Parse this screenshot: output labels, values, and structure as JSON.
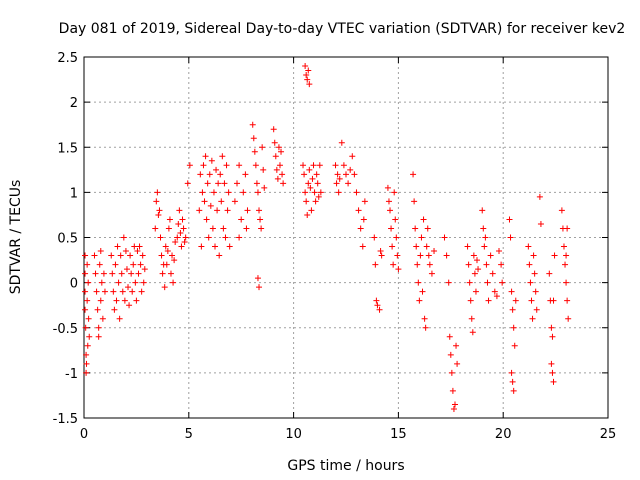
{
  "chart_data": {
    "type": "scatter",
    "title": "Day 081 of 2019, Sidereal Day-to-day VTEC variation (SDTVAR) for receiver kev2",
    "xlabel": "GPS time / hours",
    "ylabel": "SDTVAR / TECUs",
    "xlim": [
      0,
      25
    ],
    "ylim": [
      -1.5,
      2.5
    ],
    "xticks": [
      0,
      5,
      10,
      15,
      20,
      25
    ],
    "xtick_labels": [
      "0",
      "5",
      "10",
      "15",
      "20",
      "25"
    ],
    "yticks": [
      -1.5,
      -1,
      -0.5,
      0,
      0.5,
      1,
      1.5,
      2,
      2.5
    ],
    "ytick_labels": [
      "-1.5",
      "-1",
      "-0.5",
      "0",
      "0.5",
      "1",
      "1.5",
      "2",
      "2.5"
    ],
    "grid": true,
    "marker": "+",
    "color": "#ff0000",
    "series": [
      {
        "name": "SDTVAR",
        "points": [
          [
            0.05,
            0.3
          ],
          [
            0.05,
            0.1
          ],
          [
            0.05,
            -0.1
          ],
          [
            0.05,
            -0.3
          ],
          [
            0.08,
            -0.5
          ],
          [
            0.1,
            -0.8
          ],
          [
            0.1,
            -1.0
          ],
          [
            0.12,
            -0.9
          ],
          [
            0.15,
            0.2
          ],
          [
            0.15,
            -0.2
          ],
          [
            0.18,
            -0.7
          ],
          [
            0.2,
            0.0
          ],
          [
            0.22,
            -0.4
          ],
          [
            0.25,
            -0.6
          ],
          [
            0.5,
            0.3
          ],
          [
            0.55,
            0.1
          ],
          [
            0.6,
            -0.1
          ],
          [
            0.65,
            -0.3
          ],
          [
            0.7,
            -0.5
          ],
          [
            0.75,
            0.2
          ],
          [
            0.8,
            -0.2
          ],
          [
            0.85,
            0.0
          ],
          [
            0.9,
            -0.4
          ],
          [
            0.95,
            0.1
          ],
          [
            1.0,
            -0.1
          ],
          [
            0.8,
            0.35
          ],
          [
            0.7,
            -0.6
          ],
          [
            1.3,
            0.3
          ],
          [
            1.35,
            0.1
          ],
          [
            1.4,
            -0.1
          ],
          [
            1.45,
            -0.3
          ],
          [
            1.5,
            0.2
          ],
          [
            1.55,
            -0.2
          ],
          [
            1.6,
            0.4
          ],
          [
            1.65,
            0.0
          ],
          [
            1.7,
            -0.4
          ],
          [
            1.75,
            0.3
          ],
          [
            1.8,
            0.1
          ],
          [
            1.85,
            -0.1
          ],
          [
            1.9,
            0.5
          ],
          [
            1.95,
            -0.2
          ],
          [
            2.0,
            0.35
          ],
          [
            2.05,
            0.15
          ],
          [
            2.1,
            -0.05
          ],
          [
            2.15,
            -0.25
          ],
          [
            2.2,
            0.3
          ],
          [
            2.25,
            0.1
          ],
          [
            2.3,
            -0.1
          ],
          [
            2.35,
            0.2
          ],
          [
            2.4,
            0.4
          ],
          [
            2.45,
            0.0
          ],
          [
            2.5,
            -0.2
          ],
          [
            2.55,
            0.35
          ],
          [
            2.6,
            0.1
          ],
          [
            2.65,
            0.4
          ],
          [
            2.7,
            0.2
          ],
          [
            2.75,
            -0.1
          ],
          [
            2.8,
            0.3
          ],
          [
            2.85,
            0.0
          ],
          [
            2.9,
            0.15
          ],
          [
            3.4,
            0.6
          ],
          [
            3.45,
            0.9
          ],
          [
            3.5,
            1.0
          ],
          [
            3.55,
            0.75
          ],
          [
            3.6,
            0.8
          ],
          [
            3.65,
            0.5
          ],
          [
            3.7,
            0.3
          ],
          [
            3.75,
            0.1
          ],
          [
            3.8,
            0.2
          ],
          [
            3.85,
            -0.05
          ],
          [
            3.9,
            0.4
          ],
          [
            3.95,
            0.2
          ],
          [
            4.0,
            0.35
          ],
          [
            4.05,
            0.6
          ],
          [
            4.1,
            0.7
          ],
          [
            4.15,
            0.1
          ],
          [
            4.2,
            0.3
          ],
          [
            4.25,
            0.0
          ],
          [
            4.3,
            0.25
          ],
          [
            4.35,
            0.45
          ],
          [
            4.45,
            0.5
          ],
          [
            4.5,
            0.65
          ],
          [
            4.55,
            0.8
          ],
          [
            4.6,
            0.55
          ],
          [
            4.65,
            0.4
          ],
          [
            4.7,
            0.7
          ],
          [
            4.75,
            0.6
          ],
          [
            4.8,
            0.45
          ],
          [
            4.85,
            0.5
          ],
          [
            4.95,
            1.1
          ],
          [
            5.05,
            1.3
          ],
          [
            5.5,
            0.8
          ],
          [
            5.55,
            1.2
          ],
          [
            5.6,
            0.4
          ],
          [
            5.65,
            1.0
          ],
          [
            5.7,
            1.3
          ],
          [
            5.75,
            0.9
          ],
          [
            5.8,
            1.4
          ],
          [
            5.85,
            0.7
          ],
          [
            5.9,
            1.1
          ],
          [
            5.95,
            0.5
          ],
          [
            6.0,
            1.2
          ],
          [
            6.05,
            0.85
          ],
          [
            6.1,
            1.35
          ],
          [
            6.15,
            0.6
          ],
          [
            6.2,
            1.0
          ],
          [
            6.25,
            0.4
          ],
          [
            6.3,
            1.25
          ],
          [
            6.35,
            0.8
          ],
          [
            6.4,
            1.1
          ],
          [
            6.45,
            0.3
          ],
          [
            6.5,
            1.2
          ],
          [
            6.55,
            0.9
          ],
          [
            6.6,
            1.4
          ],
          [
            6.65,
            0.6
          ],
          [
            6.7,
            1.1
          ],
          [
            6.75,
            0.5
          ],
          [
            6.8,
            1.3
          ],
          [
            6.85,
            0.8
          ],
          [
            6.9,
            1.0
          ],
          [
            6.95,
            0.4
          ],
          [
            7.2,
            0.9
          ],
          [
            7.3,
            1.1
          ],
          [
            7.4,
            1.3
          ],
          [
            7.5,
            0.7
          ],
          [
            7.6,
            1.0
          ],
          [
            7.7,
            1.2
          ],
          [
            7.75,
            0.6
          ],
          [
            7.8,
            0.8
          ],
          [
            7.4,
            0.5
          ],
          [
            8.05,
            1.75
          ],
          [
            8.1,
            1.6
          ],
          [
            8.15,
            1.45
          ],
          [
            8.2,
            1.3
          ],
          [
            8.25,
            1.1
          ],
          [
            8.3,
            1.0
          ],
          [
            8.35,
            0.8
          ],
          [
            8.4,
            0.7
          ],
          [
            8.45,
            0.6
          ],
          [
            8.5,
            1.5
          ],
          [
            8.55,
            1.25
          ],
          [
            8.6,
            1.05
          ],
          [
            8.3,
            0.05
          ],
          [
            8.35,
            -0.05
          ],
          [
            9.05,
            1.7
          ],
          [
            9.1,
            1.55
          ],
          [
            9.15,
            1.4
          ],
          [
            9.2,
            1.25
          ],
          [
            9.25,
            1.15
          ],
          [
            9.3,
            1.5
          ],
          [
            9.35,
            1.3
          ],
          [
            9.4,
            1.45
          ],
          [
            9.45,
            1.2
          ],
          [
            9.5,
            1.1
          ],
          [
            10.55,
            2.4
          ],
          [
            10.6,
            2.3
          ],
          [
            10.65,
            2.25
          ],
          [
            10.7,
            2.35
          ],
          [
            10.75,
            2.2
          ],
          [
            10.45,
            1.3
          ],
          [
            10.5,
            1.2
          ],
          [
            10.55,
            1.0
          ],
          [
            10.6,
            0.9
          ],
          [
            10.65,
            0.75
          ],
          [
            10.7,
            1.1
          ],
          [
            10.75,
            1.25
          ],
          [
            10.8,
            1.05
          ],
          [
            10.85,
            0.8
          ],
          [
            10.9,
            1.15
          ],
          [
            10.95,
            1.3
          ],
          [
            11.0,
            1.0
          ],
          [
            11.05,
            0.9
          ],
          [
            11.1,
            1.2
          ],
          [
            11.15,
            1.1
          ],
          [
            11.2,
            0.95
          ],
          [
            11.25,
            1.3
          ],
          [
            11.3,
            1.0
          ],
          [
            12.0,
            1.3
          ],
          [
            12.05,
            1.1
          ],
          [
            12.1,
            1.2
          ],
          [
            12.15,
            1.0
          ],
          [
            12.2,
            1.15
          ],
          [
            12.3,
            1.55
          ],
          [
            12.4,
            1.3
          ],
          [
            12.5,
            1.2
          ],
          [
            12.6,
            1.1
          ],
          [
            12.7,
            1.25
          ],
          [
            12.8,
            1.4
          ],
          [
            12.9,
            1.2
          ],
          [
            13.0,
            1.0
          ],
          [
            13.1,
            0.8
          ],
          [
            13.2,
            0.6
          ],
          [
            13.3,
            0.4
          ],
          [
            13.35,
            0.7
          ],
          [
            13.4,
            0.9
          ],
          [
            13.85,
            0.5
          ],
          [
            13.9,
            0.2
          ],
          [
            13.95,
            -0.2
          ],
          [
            14.0,
            -0.25
          ],
          [
            14.1,
            -0.3
          ],
          [
            14.15,
            0.35
          ],
          [
            14.2,
            0.3
          ],
          [
            14.5,
            1.05
          ],
          [
            14.55,
            0.9
          ],
          [
            14.6,
            0.8
          ],
          [
            14.65,
            0.6
          ],
          [
            14.7,
            0.4
          ],
          [
            14.75,
            0.2
          ],
          [
            14.8,
            1.0
          ],
          [
            14.85,
            0.7
          ],
          [
            14.9,
            0.5
          ],
          [
            14.95,
            0.3
          ],
          [
            15.0,
            0.15
          ],
          [
            15.7,
            1.2
          ],
          [
            15.75,
            0.9
          ],
          [
            15.8,
            0.6
          ],
          [
            15.85,
            0.4
          ],
          [
            15.9,
            0.2
          ],
          [
            15.95,
            0.0
          ],
          [
            16.0,
            -0.2
          ],
          [
            16.05,
            0.3
          ],
          [
            16.1,
            0.5
          ],
          [
            16.15,
            -0.1
          ],
          [
            16.2,
            0.7
          ],
          [
            16.25,
            -0.4
          ],
          [
            16.3,
            -0.5
          ],
          [
            16.35,
            0.4
          ],
          [
            16.4,
            0.6
          ],
          [
            16.45,
            0.3
          ],
          [
            16.5,
            0.2
          ],
          [
            16.6,
            0.1
          ],
          [
            16.7,
            0.35
          ],
          [
            17.2,
            0.5
          ],
          [
            17.3,
            0.3
          ],
          [
            17.4,
            0.0
          ],
          [
            17.45,
            -0.6
          ],
          [
            17.5,
            -0.8
          ],
          [
            17.55,
            -1.0
          ],
          [
            17.6,
            -1.2
          ],
          [
            17.65,
            -1.4
          ],
          [
            17.7,
            -1.35
          ],
          [
            17.75,
            -0.7
          ],
          [
            17.8,
            -0.9
          ],
          [
            18.3,
            0.4
          ],
          [
            18.35,
            0.2
          ],
          [
            18.4,
            0.0
          ],
          [
            18.45,
            -0.2
          ],
          [
            18.5,
            -0.4
          ],
          [
            18.55,
            -0.55
          ],
          [
            18.6,
            0.3
          ],
          [
            18.65,
            0.1
          ],
          [
            18.7,
            -0.1
          ],
          [
            18.75,
            0.25
          ],
          [
            18.8,
            0.15
          ],
          [
            19.0,
            0.8
          ],
          [
            19.05,
            0.6
          ],
          [
            19.1,
            0.4
          ],
          [
            19.15,
            0.5
          ],
          [
            19.2,
            0.2
          ],
          [
            19.25,
            0.0
          ],
          [
            19.3,
            -0.2
          ],
          [
            19.4,
            0.3
          ],
          [
            19.5,
            0.1
          ],
          [
            19.6,
            -0.1
          ],
          [
            19.7,
            -0.15
          ],
          [
            19.8,
            0.35
          ],
          [
            19.9,
            0.2
          ],
          [
            19.95,
            0.0
          ],
          [
            20.3,
            0.7
          ],
          [
            20.35,
            0.5
          ],
          [
            20.4,
            -0.1
          ],
          [
            20.45,
            -0.3
          ],
          [
            20.5,
            -0.5
          ],
          [
            20.55,
            -0.7
          ],
          [
            20.6,
            -0.2
          ],
          [
            20.4,
            -1.0
          ],
          [
            20.45,
            -1.1
          ],
          [
            20.5,
            -1.2
          ],
          [
            21.2,
            0.4
          ],
          [
            21.25,
            0.2
          ],
          [
            21.3,
            0.0
          ],
          [
            21.35,
            -0.2
          ],
          [
            21.4,
            -0.4
          ],
          [
            21.45,
            0.3
          ],
          [
            21.5,
            0.1
          ],
          [
            21.55,
            -0.1
          ],
          [
            21.6,
            -0.3
          ],
          [
            21.75,
            0.95
          ],
          [
            21.8,
            0.65
          ],
          [
            22.2,
            0.1
          ],
          [
            22.25,
            -0.2
          ],
          [
            22.3,
            -0.5
          ],
          [
            22.35,
            -0.6
          ],
          [
            22.3,
            -0.9
          ],
          [
            22.35,
            -1.0
          ],
          [
            22.4,
            -1.1
          ],
          [
            22.4,
            -0.2
          ],
          [
            22.45,
            0.3
          ],
          [
            22.8,
            0.8
          ],
          [
            22.85,
            0.6
          ],
          [
            22.9,
            0.4
          ],
          [
            22.95,
            0.2
          ],
          [
            23.0,
            0.0
          ],
          [
            23.05,
            -0.2
          ],
          [
            23.1,
            -0.4
          ],
          [
            23.0,
            0.3
          ],
          [
            23.05,
            0.6
          ]
        ]
      }
    ]
  }
}
